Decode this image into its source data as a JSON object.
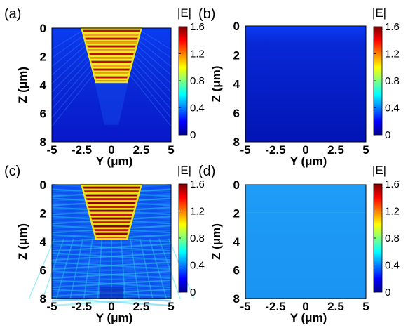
{
  "chart_data": [
    {
      "type": "heatmap",
      "panel_label": "(a)",
      "xlabel": "Y (μm)",
      "ylabel": "Z (μm)",
      "xlim": [
        -5,
        5
      ],
      "ylim": [
        8,
        0
      ],
      "x_ticks": [
        "-5",
        "-2.5",
        "0",
        "2.5",
        "5"
      ],
      "y_ticks": [
        "0",
        "2",
        "4",
        "6",
        "8"
      ],
      "colorbar": {
        "title": "|E|",
        "range": [
          0,
          1.6
        ],
        "ticks": [
          "1.6",
          "1.2",
          "0.8",
          "0.4",
          "0"
        ]
      },
      "description_values": {
        "trapezoid_top_y": [
          -2.5,
          2.5
        ],
        "trapezoid_bottom_y": [
          -1.3,
          1.3
        ],
        "trapezoid_depth": 3.8,
        "outside_field": "low"
      }
    },
    {
      "type": "heatmap",
      "panel_label": "(b)",
      "xlabel": "Y (μm)",
      "ylabel": "Z (μm)",
      "xlim": [
        -5,
        5
      ],
      "ylim": [
        8,
        0
      ],
      "x_ticks": [
        "-5",
        "-2.5",
        "0",
        "2.5",
        "5"
      ],
      "y_ticks": [
        "0",
        "2",
        "4",
        "6",
        "8"
      ],
      "colorbar": {
        "title": "|E|",
        "range": [
          0,
          1.6
        ],
        "ticks": [
          "1.6",
          "1.2",
          "0.8",
          "0.4",
          "0"
        ]
      },
      "description_values": {
        "field": "uniform low",
        "approx_value": 0.05
      }
    },
    {
      "type": "heatmap",
      "panel_label": "(c)",
      "xlabel": "Y (μm)",
      "ylabel": "Z (μm)",
      "xlim": [
        -5,
        5
      ],
      "ylim": [
        8,
        0
      ],
      "x_ticks": [
        "-5",
        "-2.5",
        "0",
        "2.5",
        "5"
      ],
      "y_ticks": [
        "0",
        "2",
        "4",
        "6",
        "8"
      ],
      "colorbar": {
        "title": "|E|",
        "range": [
          0,
          1.6
        ],
        "ticks": [
          "1.6",
          "1.2",
          "0.8",
          "0.4",
          "0"
        ]
      },
      "description_values": {
        "trapezoid_top_y": [
          -2.5,
          2.5
        ],
        "trapezoid_bottom_y": [
          -1.3,
          1.3
        ],
        "trapezoid_depth": 3.8,
        "outside_field": "interference"
      }
    },
    {
      "type": "heatmap",
      "panel_label": "(d)",
      "xlabel": "Y (μm)",
      "ylabel": "Z (μm)",
      "xlim": [
        -5,
        5
      ],
      "ylim": [
        8,
        0
      ],
      "x_ticks": [
        "-5",
        "-2.5",
        "0",
        "2.5",
        "5"
      ],
      "y_ticks": [
        "0",
        "2",
        "4",
        "6",
        "8"
      ],
      "colorbar": {
        "title": "|E|",
        "range": [
          0,
          1.6
        ],
        "ticks": [
          "1.6",
          "1.2",
          "0.8",
          "0.4",
          "0"
        ]
      },
      "description_values": {
        "field": "uniform",
        "approx_value": 0.55
      }
    }
  ]
}
